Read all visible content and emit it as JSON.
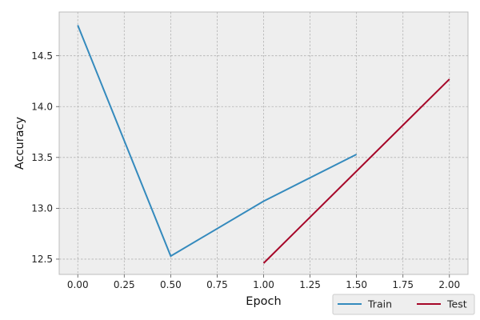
{
  "chart_data": {
    "type": "line",
    "title": "",
    "xlabel": "Epoch",
    "ylabel": "Accuracy",
    "xlim": [
      -0.1,
      2.1
    ],
    "ylim": [
      12.35,
      14.93
    ],
    "x_ticks": [
      0.0,
      0.25,
      0.5,
      0.75,
      1.0,
      1.25,
      1.5,
      1.75,
      2.0
    ],
    "x_tick_labels": [
      "0.00",
      "0.25",
      "0.50",
      "0.75",
      "1.00",
      "1.25",
      "1.50",
      "1.75",
      "2.00"
    ],
    "y_ticks": [
      12.5,
      13.0,
      13.5,
      14.0,
      14.5
    ],
    "y_tick_labels": [
      "12.5",
      "13.0",
      "13.5",
      "14.0",
      "14.5"
    ],
    "grid": true,
    "legend_position": "below-right",
    "series": [
      {
        "name": "Train",
        "color": "#348abd",
        "points": [
          {
            "x": 0.0,
            "y": 14.8
          },
          {
            "x": 0.5,
            "y": 12.53
          },
          {
            "x": 1.0,
            "y": 13.07
          },
          {
            "x": 1.5,
            "y": 13.53
          }
        ]
      },
      {
        "name": "Test",
        "color": "#a60628",
        "points": [
          {
            "x": 1.0,
            "y": 12.46
          },
          {
            "x": 2.0,
            "y": 14.27
          }
        ]
      }
    ]
  }
}
